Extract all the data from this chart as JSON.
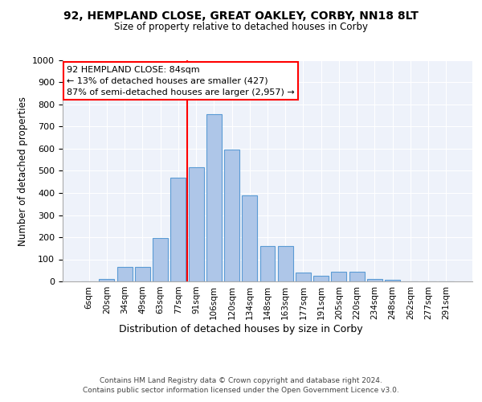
{
  "title": "92, HEMPLAND CLOSE, GREAT OAKLEY, CORBY, NN18 8LT",
  "subtitle": "Size of property relative to detached houses in Corby",
  "xlabel": "Distribution of detached houses by size in Corby",
  "ylabel": "Number of detached properties",
  "bar_categories": [
    "6sqm",
    "20sqm",
    "34sqm",
    "49sqm",
    "63sqm",
    "77sqm",
    "91sqm",
    "106sqm",
    "120sqm",
    "134sqm",
    "148sqm",
    "163sqm",
    "177sqm",
    "191sqm",
    "205sqm",
    "220sqm",
    "234sqm",
    "248sqm",
    "262sqm",
    "277sqm",
    "291sqm"
  ],
  "bar_values": [
    0,
    12,
    65,
    65,
    197,
    470,
    517,
    755,
    595,
    390,
    160,
    160,
    40,
    27,
    43,
    43,
    12,
    8,
    0,
    0,
    0
  ],
  "bar_color": "#aec6e8",
  "bar_edge_color": "#5b9bd5",
  "vline_color": "red",
  "annotation_text": "92 HEMPLAND CLOSE: 84sqm\n← 13% of detached houses are smaller (427)\n87% of semi-detached houses are larger (2,957) →",
  "annotation_box_color": "white",
  "annotation_box_edge_color": "red",
  "ylim": [
    0,
    1000
  ],
  "yticks": [
    0,
    100,
    200,
    300,
    400,
    500,
    600,
    700,
    800,
    900,
    1000
  ],
  "footer": "Contains HM Land Registry data © Crown copyright and database right 2024.\nContains public sector information licensed under the Open Government Licence v3.0.",
  "plot_bg_color": "#eef2fa",
  "vline_index": 5.5
}
